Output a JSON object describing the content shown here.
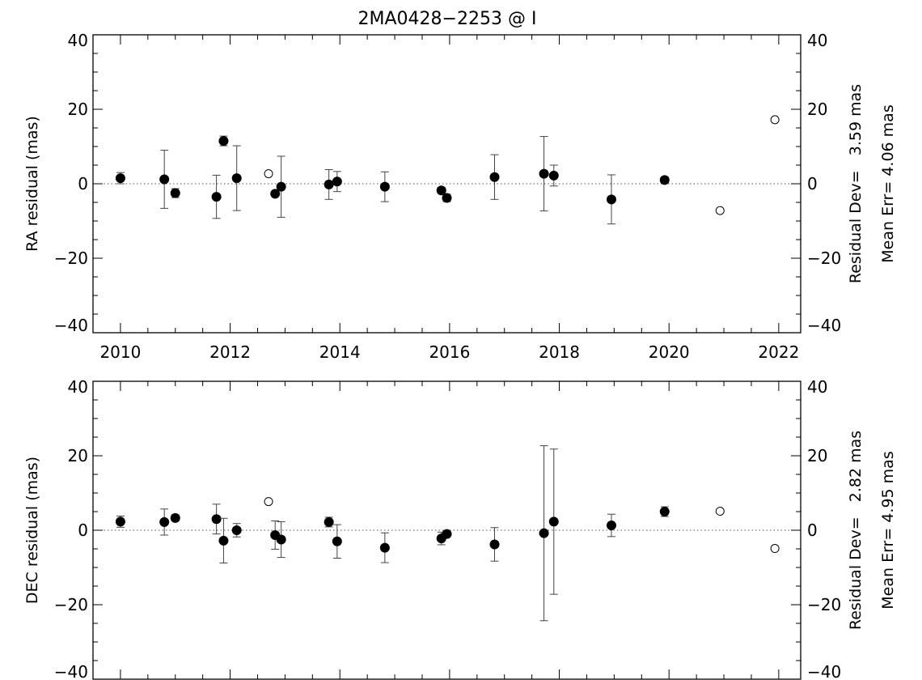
{
  "title": "2MA0428−2253 @ I",
  "chart_data": [
    {
      "type": "scatter",
      "ylabel": "RA residual (mas)",
      "xlim": [
        2009.5,
        2022.4
      ],
      "ylim": [
        -40,
        40
      ],
      "xticks": [
        2010,
        2012,
        2014,
        2016,
        2018,
        2020,
        2022
      ],
      "xtick_labels": [
        "2010",
        "2012",
        "2014",
        "2016",
        "2018",
        "2020",
        "2022"
      ],
      "yticks": [
        -40,
        -20,
        0,
        20,
        40
      ],
      "ytick_labels": [
        "−40",
        "−20",
        "0",
        "20",
        "40"
      ],
      "right_ytick_labels": [
        "−40",
        "−20",
        "0",
        "20",
        "40"
      ],
      "zero_line": "dotted",
      "stats": [
        "Residual Dev=   3.59 mas",
        "Mean Err= 4.06 mas"
      ],
      "points": [
        {
          "x": 2010.0,
          "y": 1.5,
          "err": 1.5,
          "filled": true
        },
        {
          "x": 2010.8,
          "y": 1.2,
          "err": 7.8,
          "filled": true
        },
        {
          "x": 2011.0,
          "y": -2.5,
          "err": 1.2,
          "filled": true
        },
        {
          "x": 2011.75,
          "y": -3.5,
          "err": 5.8,
          "filled": true
        },
        {
          "x": 2011.88,
          "y": 11.5,
          "err": 1.3,
          "filled": true
        },
        {
          "x": 2012.12,
          "y": 1.5,
          "err": 8.7,
          "filled": true
        },
        {
          "x": 2012.7,
          "y": 2.7,
          "err": 0,
          "filled": false
        },
        {
          "x": 2012.82,
          "y": -2.7,
          "err": 0,
          "filled": true
        },
        {
          "x": 2012.93,
          "y": -0.8,
          "err": 8.2,
          "filled": true
        },
        {
          "x": 2013.8,
          "y": -0.2,
          "err": 4.0,
          "filled": true
        },
        {
          "x": 2013.95,
          "y": 0.6,
          "err": 2.7,
          "filled": true
        },
        {
          "x": 2014.82,
          "y": -0.8,
          "err": 4.0,
          "filled": true
        },
        {
          "x": 2015.85,
          "y": -1.8,
          "err": 0.8,
          "filled": true
        },
        {
          "x": 2015.95,
          "y": -3.8,
          "err": 1.0,
          "filled": true
        },
        {
          "x": 2016.82,
          "y": 1.8,
          "err": 6.0,
          "filled": true
        },
        {
          "x": 2017.72,
          "y": 2.7,
          "err": 10.0,
          "filled": true
        },
        {
          "x": 2017.9,
          "y": 2.2,
          "err": 2.8,
          "filled": true
        },
        {
          "x": 2018.95,
          "y": -4.2,
          "err": 6.6,
          "filled": true
        },
        {
          "x": 2019.92,
          "y": 1.0,
          "err": 0.8,
          "filled": true
        },
        {
          "x": 2020.93,
          "y": -7.2,
          "err": 0,
          "filled": false
        },
        {
          "x": 2021.93,
          "y": 17.2,
          "err": 0,
          "filled": false
        }
      ]
    },
    {
      "type": "scatter",
      "ylabel": "DEC residual (mas)",
      "xlim": [
        2009.5,
        2022.4
      ],
      "ylim": [
        -40,
        40
      ],
      "xticks": [
        2010,
        2012,
        2014,
        2016,
        2018,
        2020,
        2022
      ],
      "yticks": [
        -40,
        -20,
        0,
        20,
        40
      ],
      "ytick_labels": [
        "−40",
        "−20",
        "0",
        "20",
        "40"
      ],
      "right_ytick_labels": [
        "−40",
        "−20",
        "0",
        "20",
        "40"
      ],
      "zero_line": "dotted",
      "stats": [
        "Residual Dev=   2.82 mas",
        "Mean Err= 4.95 mas"
      ],
      "points": [
        {
          "x": 2010.0,
          "y": 2.3,
          "err": 1.5,
          "filled": true
        },
        {
          "x": 2010.8,
          "y": 2.2,
          "err": 3.5,
          "filled": true
        },
        {
          "x": 2011.0,
          "y": 3.3,
          "err": 0.8,
          "filled": true
        },
        {
          "x": 2011.75,
          "y": 3.0,
          "err": 4.0,
          "filled": true
        },
        {
          "x": 2011.88,
          "y": -2.8,
          "err": 6.0,
          "filled": true
        },
        {
          "x": 2012.12,
          "y": 0.0,
          "err": 1.8,
          "filled": true
        },
        {
          "x": 2012.7,
          "y": 7.7,
          "err": 0,
          "filled": false
        },
        {
          "x": 2012.82,
          "y": -1.3,
          "err": 3.8,
          "filled": true
        },
        {
          "x": 2012.93,
          "y": -2.5,
          "err": 4.8,
          "filled": true
        },
        {
          "x": 2013.8,
          "y": 2.2,
          "err": 1.3,
          "filled": true
        },
        {
          "x": 2013.95,
          "y": -3.0,
          "err": 4.5,
          "filled": true
        },
        {
          "x": 2014.82,
          "y": -4.7,
          "err": 4.0,
          "filled": true
        },
        {
          "x": 2015.85,
          "y": -2.2,
          "err": 1.7,
          "filled": true
        },
        {
          "x": 2015.95,
          "y": -1.0,
          "err": 0.8,
          "filled": true
        },
        {
          "x": 2016.82,
          "y": -3.8,
          "err": 4.5,
          "filled": true
        },
        {
          "x": 2017.72,
          "y": -0.8,
          "err": 23.5,
          "filled": true
        },
        {
          "x": 2017.9,
          "y": 2.3,
          "err": 19.5,
          "filled": true
        },
        {
          "x": 2018.95,
          "y": 1.3,
          "err": 3.0,
          "filled": true
        },
        {
          "x": 2019.92,
          "y": 5.0,
          "err": 1.3,
          "filled": true
        },
        {
          "x": 2020.93,
          "y": 5.1,
          "err": 0,
          "filled": false
        },
        {
          "x": 2021.93,
          "y": -4.9,
          "err": 0,
          "filled": false
        }
      ]
    }
  ]
}
